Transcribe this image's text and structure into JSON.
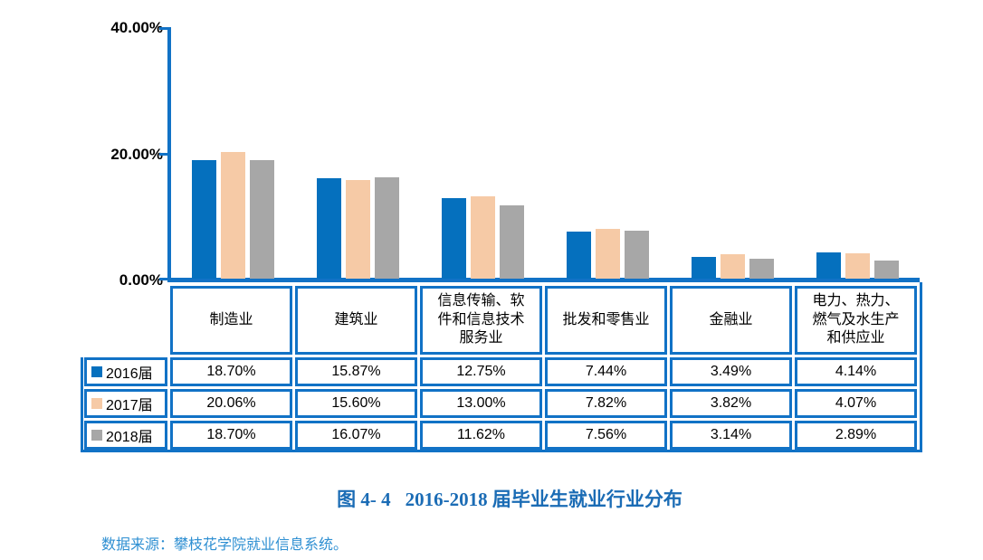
{
  "colors": {
    "axis_blue": "#1172c6",
    "border_blue": "#1172c6",
    "bar_2016_blue": "#0570be",
    "bar_2017_peach": "#f6caa6",
    "bar_2018_gray": "#a7a7a7",
    "title_blue": "#1b6cb5",
    "source_blue": "#2e8fd2",
    "text_black": "#000000",
    "background": "#ffffff"
  },
  "y_axis": {
    "labels": [
      "40.00%",
      "20.00%",
      "0.00%"
    ]
  },
  "chart_data": {
    "type": "bar",
    "title": "2016-2018 届毕业生就业行业分布",
    "categories": [
      "制造业",
      "建筑业",
      "信息传输、软\n件和信息技术\n服务业",
      "批发和零售业",
      "金融业",
      "电力、热力、\n燃气及水生产\n和供应业"
    ],
    "series": [
      {
        "name": "2016届",
        "color": "#0570be",
        "values": [
          18.7,
          15.87,
          12.75,
          7.44,
          3.49,
          4.14
        ]
      },
      {
        "name": "2017届",
        "color": "#f6caa6",
        "values": [
          20.06,
          15.6,
          13.0,
          7.82,
          3.82,
          4.07
        ]
      },
      {
        "name": "2018届",
        "color": "#a7a7a7",
        "values": [
          18.7,
          16.07,
          11.62,
          7.56,
          3.14,
          2.89
        ]
      }
    ],
    "ylim": [
      0,
      40
    ],
    "y_tick_labels": [
      "0.00%",
      "20.00%",
      "40.00%"
    ],
    "grid": false,
    "legend_position": "data-table-left",
    "value_format": "0.00%"
  },
  "caption": {
    "figure_label": "图 4- 4",
    "title": "2016-2018 届毕业生就业行业分布"
  },
  "source": "数据来源：攀枝花学院就业信息系统。"
}
